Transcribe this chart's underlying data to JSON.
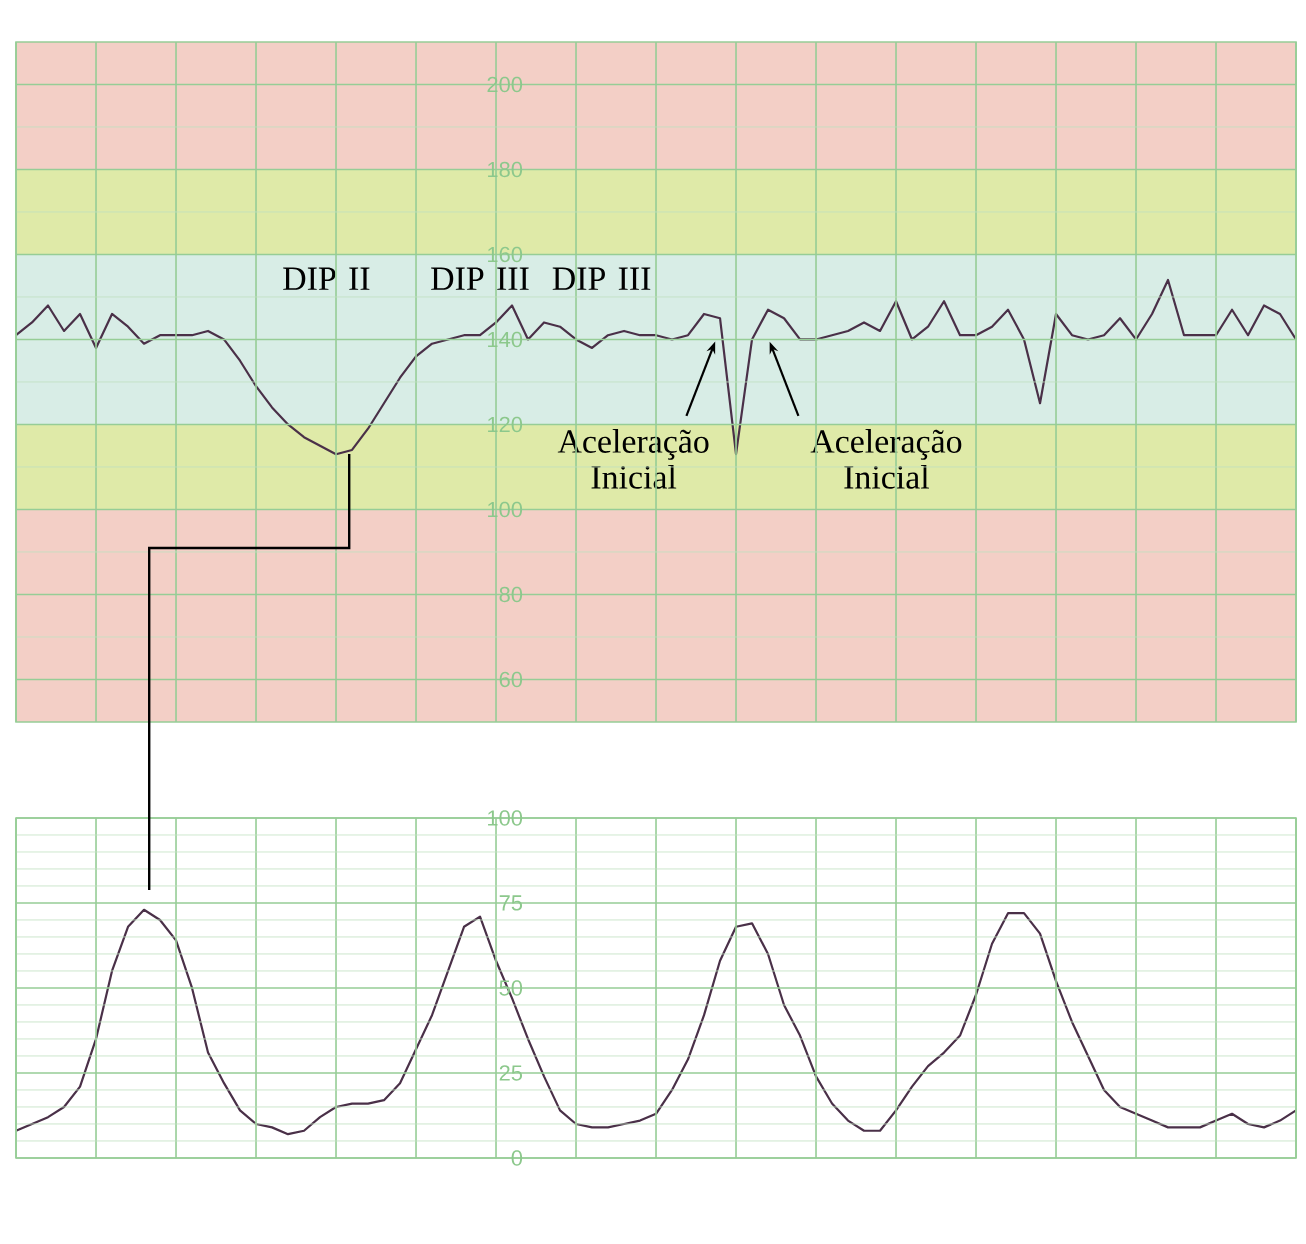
{
  "chart_data": [
    {
      "type": "line",
      "categories": [
        null,
        null,
        null,
        null,
        null,
        null,
        null,
        null,
        null,
        null,
        null,
        null,
        null,
        null,
        null,
        null,
        null,
        null,
        null,
        null,
        null,
        null,
        null,
        null,
        null,
        null,
        null,
        null,
        null,
        null,
        null,
        null,
        null,
        null,
        null,
        null,
        null,
        null,
        null,
        null,
        null,
        null,
        null,
        null,
        null,
        null,
        null,
        null,
        null,
        null,
        null,
        null,
        null,
        null,
        null,
        null,
        null,
        null,
        null,
        null,
        null,
        null,
        null,
        null,
        null,
        null,
        null,
        null,
        null,
        null,
        null,
        null,
        null,
        null,
        null,
        null,
        null,
        null,
        null,
        null,
        null
      ],
      "series": [
        {
          "color": "#4a3048",
          "values": [
            141,
            144,
            148,
            142,
            146,
            138,
            146,
            143,
            139,
            141,
            141,
            141,
            142,
            140,
            135,
            129,
            124,
            120,
            117,
            115,
            113,
            114,
            119,
            125,
            131,
            136,
            139,
            140,
            141,
            141,
            144,
            148,
            140,
            144,
            143,
            140,
            138,
            141,
            142,
            141,
            141,
            140,
            141,
            146,
            145,
            113,
            140,
            147,
            145,
            140,
            140,
            141,
            142,
            144,
            142,
            149,
            140,
            143,
            149,
            141,
            141,
            143,
            147,
            140,
            125,
            146,
            141,
            140,
            141,
            145,
            140,
            146,
            154,
            141,
            141,
            141,
            147,
            141,
            148,
            146,
            140
          ]
        }
      ],
      "ylim": [
        50,
        210
      ],
      "yticks": [
        60,
        80,
        100,
        120,
        140,
        160,
        180,
        200
      ],
      "tick_labels": "y",
      "grid": true,
      "bands": [
        {
          "axis": "y",
          "from": 50,
          "to": 100,
          "color": "#f3cfc6"
        },
        {
          "axis": "y",
          "from": 100,
          "to": 120,
          "color": "#dfeaa8"
        },
        {
          "axis": "y",
          "from": 120,
          "to": 160,
          "color": "#d8ede6"
        },
        {
          "axis": "y",
          "from": 160,
          "to": 180,
          "color": "#dfeaa8"
        },
        {
          "axis": "y",
          "from": 180,
          "to": 210,
          "color": "#f3cfc6"
        }
      ],
      "annotations": [
        "DIP II",
        "DIP III",
        "DIP III",
        "Aceleração Inicial",
        "Aceleração Inicial"
      ]
    },
    {
      "type": "line",
      "categories": [
        null,
        null,
        null,
        null,
        null,
        null,
        null,
        null,
        null,
        null,
        null,
        null,
        null,
        null,
        null,
        null,
        null,
        null,
        null,
        null,
        null,
        null,
        null,
        null,
        null,
        null,
        null,
        null,
        null,
        null,
        null,
        null,
        null,
        null,
        null,
        null,
        null,
        null,
        null,
        null,
        null,
        null,
        null,
        null,
        null,
        null,
        null,
        null,
        null,
        null,
        null,
        null,
        null,
        null,
        null,
        null,
        null,
        null,
        null,
        null,
        null,
        null,
        null,
        null,
        null,
        null,
        null,
        null,
        null,
        null,
        null,
        null,
        null,
        null,
        null,
        null,
        null,
        null,
        null,
        null,
        null
      ],
      "series": [
        {
          "color": "#4a3048",
          "values": [
            8,
            10,
            12,
            15,
            21,
            35,
            55,
            68,
            73,
            70,
            64,
            50,
            31,
            22,
            14,
            10,
            9,
            7,
            8,
            12,
            15,
            16,
            16,
            17,
            22,
            32,
            42,
            55,
            68,
            71,
            58,
            47,
            35,
            24,
            14,
            10,
            9,
            9,
            10,
            11,
            13,
            20,
            29,
            42,
            58,
            68,
            69,
            60,
            45,
            36,
            24,
            16,
            11,
            8,
            8,
            14,
            21,
            27,
            31,
            36,
            48,
            63,
            72,
            72,
            66,
            52,
            40,
            30,
            20,
            15,
            13,
            11,
            9,
            9,
            9,
            11,
            13,
            10,
            9,
            11,
            14
          ]
        }
      ],
      "ylim": [
        0,
        100
      ],
      "yticks": [
        0,
        25,
        50,
        75,
        100
      ],
      "tick_labels": "y",
      "grid": true
    }
  ]
}
